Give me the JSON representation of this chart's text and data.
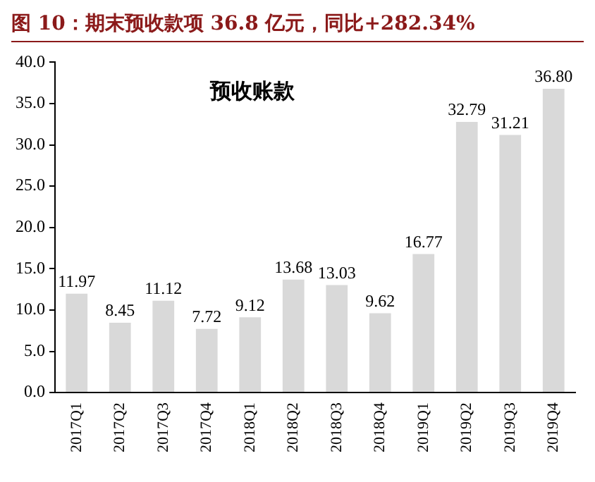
{
  "chart_data": {
    "type": "bar",
    "title": "图 10：期末预收款项 36.8 亿元，同比+282.34%",
    "categories": [
      "2017Q1",
      "2017Q2",
      "2017Q3",
      "2017Q4",
      "2018Q1",
      "2018Q2",
      "2018Q3",
      "2018Q4",
      "2019Q1",
      "2019Q2",
      "2019Q3",
      "2019Q4"
    ],
    "values": [
      11.97,
      8.45,
      11.12,
      7.72,
      9.12,
      13.68,
      13.03,
      9.62,
      16.77,
      32.79,
      31.21,
      36.8
    ],
    "value_labels": [
      "11.97",
      "8.45",
      "11.12",
      "7.72",
      "9.12",
      "13.68",
      "13.03",
      "9.62",
      "16.77",
      "32.79",
      "31.21",
      "36.80"
    ],
    "color": "#d9d9d9",
    "ylim": [
      0,
      40
    ],
    "yticks": [
      {
        "value": 0,
        "label": "0.0"
      },
      {
        "value": 5,
        "label": "5.0"
      },
      {
        "value": 10,
        "label": "10.0"
      },
      {
        "value": 15,
        "label": "15.0"
      },
      {
        "value": 20,
        "label": "20.0"
      },
      {
        "value": 25,
        "label": "25.0"
      },
      {
        "value": 30,
        "label": "30.0"
      },
      {
        "value": 35,
        "label": "35.0"
      },
      {
        "value": 40,
        "label": "40.0"
      }
    ],
    "annotations": [
      "预收账款"
    ],
    "grid": false
  }
}
